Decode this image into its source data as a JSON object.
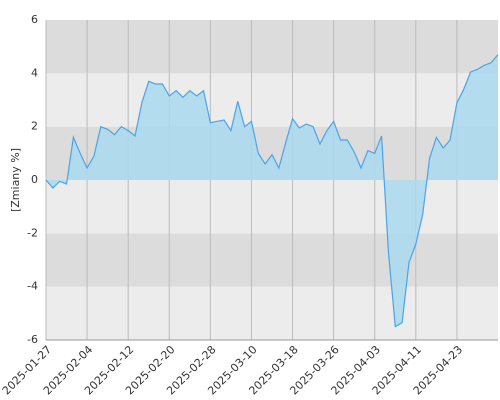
{
  "chart_data": {
    "type": "area",
    "y_label": "[Zmiany %]",
    "categories": [
      "2025-01-27",
      null,
      null,
      null,
      null,
      null,
      "2025-02-04",
      null,
      null,
      null,
      null,
      null,
      "2025-02-12",
      null,
      null,
      null,
      null,
      null,
      "2025-02-20",
      null,
      null,
      null,
      null,
      null,
      "2025-02-28",
      null,
      null,
      null,
      null,
      null,
      "2025-03-10",
      null,
      null,
      null,
      null,
      null,
      "2025-03-18",
      null,
      null,
      null,
      null,
      null,
      "2025-03-26",
      null,
      null,
      null,
      null,
      null,
      "2025-04-03",
      null,
      null,
      null,
      null,
      null,
      "2025-04-11",
      null,
      null,
      null,
      null,
      null,
      "2025-04-23",
      null,
      null,
      null,
      null,
      null,
      null
    ],
    "series": [
      {
        "color": "#4da3e6",
        "area_color": "#a9d9f0",
        "values": [
          0,
          -0.3,
          -0.05,
          -0.15,
          1.6,
          1.0,
          0.45,
          0.9,
          2.0,
          1.9,
          1.7,
          2.0,
          1.85,
          1.65,
          2.9,
          3.7,
          3.6,
          3.6,
          3.15,
          3.35,
          3.1,
          3.35,
          3.15,
          3.35,
          2.15,
          2.2,
          2.25,
          1.85,
          2.95,
          2.0,
          2.2,
          1.0,
          0.6,
          0.95,
          0.45,
          1.4,
          2.3,
          1.95,
          2.1,
          2.0,
          1.35,
          1.85,
          2.2,
          1.5,
          1.5,
          1.05,
          0.45,
          1.1,
          1.0,
          1.65,
          -2.7,
          -5.5,
          -5.35,
          -3.1,
          -2.4,
          -1.3,
          0.8,
          1.6,
          1.2,
          1.5,
          2.9,
          3.4,
          4.05,
          4.15,
          4.3,
          4.4,
          4.7
        ]
      }
    ],
    "ylim": [
      -6,
      6
    ],
    "yticks": [
      -6,
      -4,
      -2,
      0,
      2,
      4,
      6
    ],
    "band_colors": [
      "#ececec",
      "#dcdcdc"
    ],
    "grid": true
  }
}
